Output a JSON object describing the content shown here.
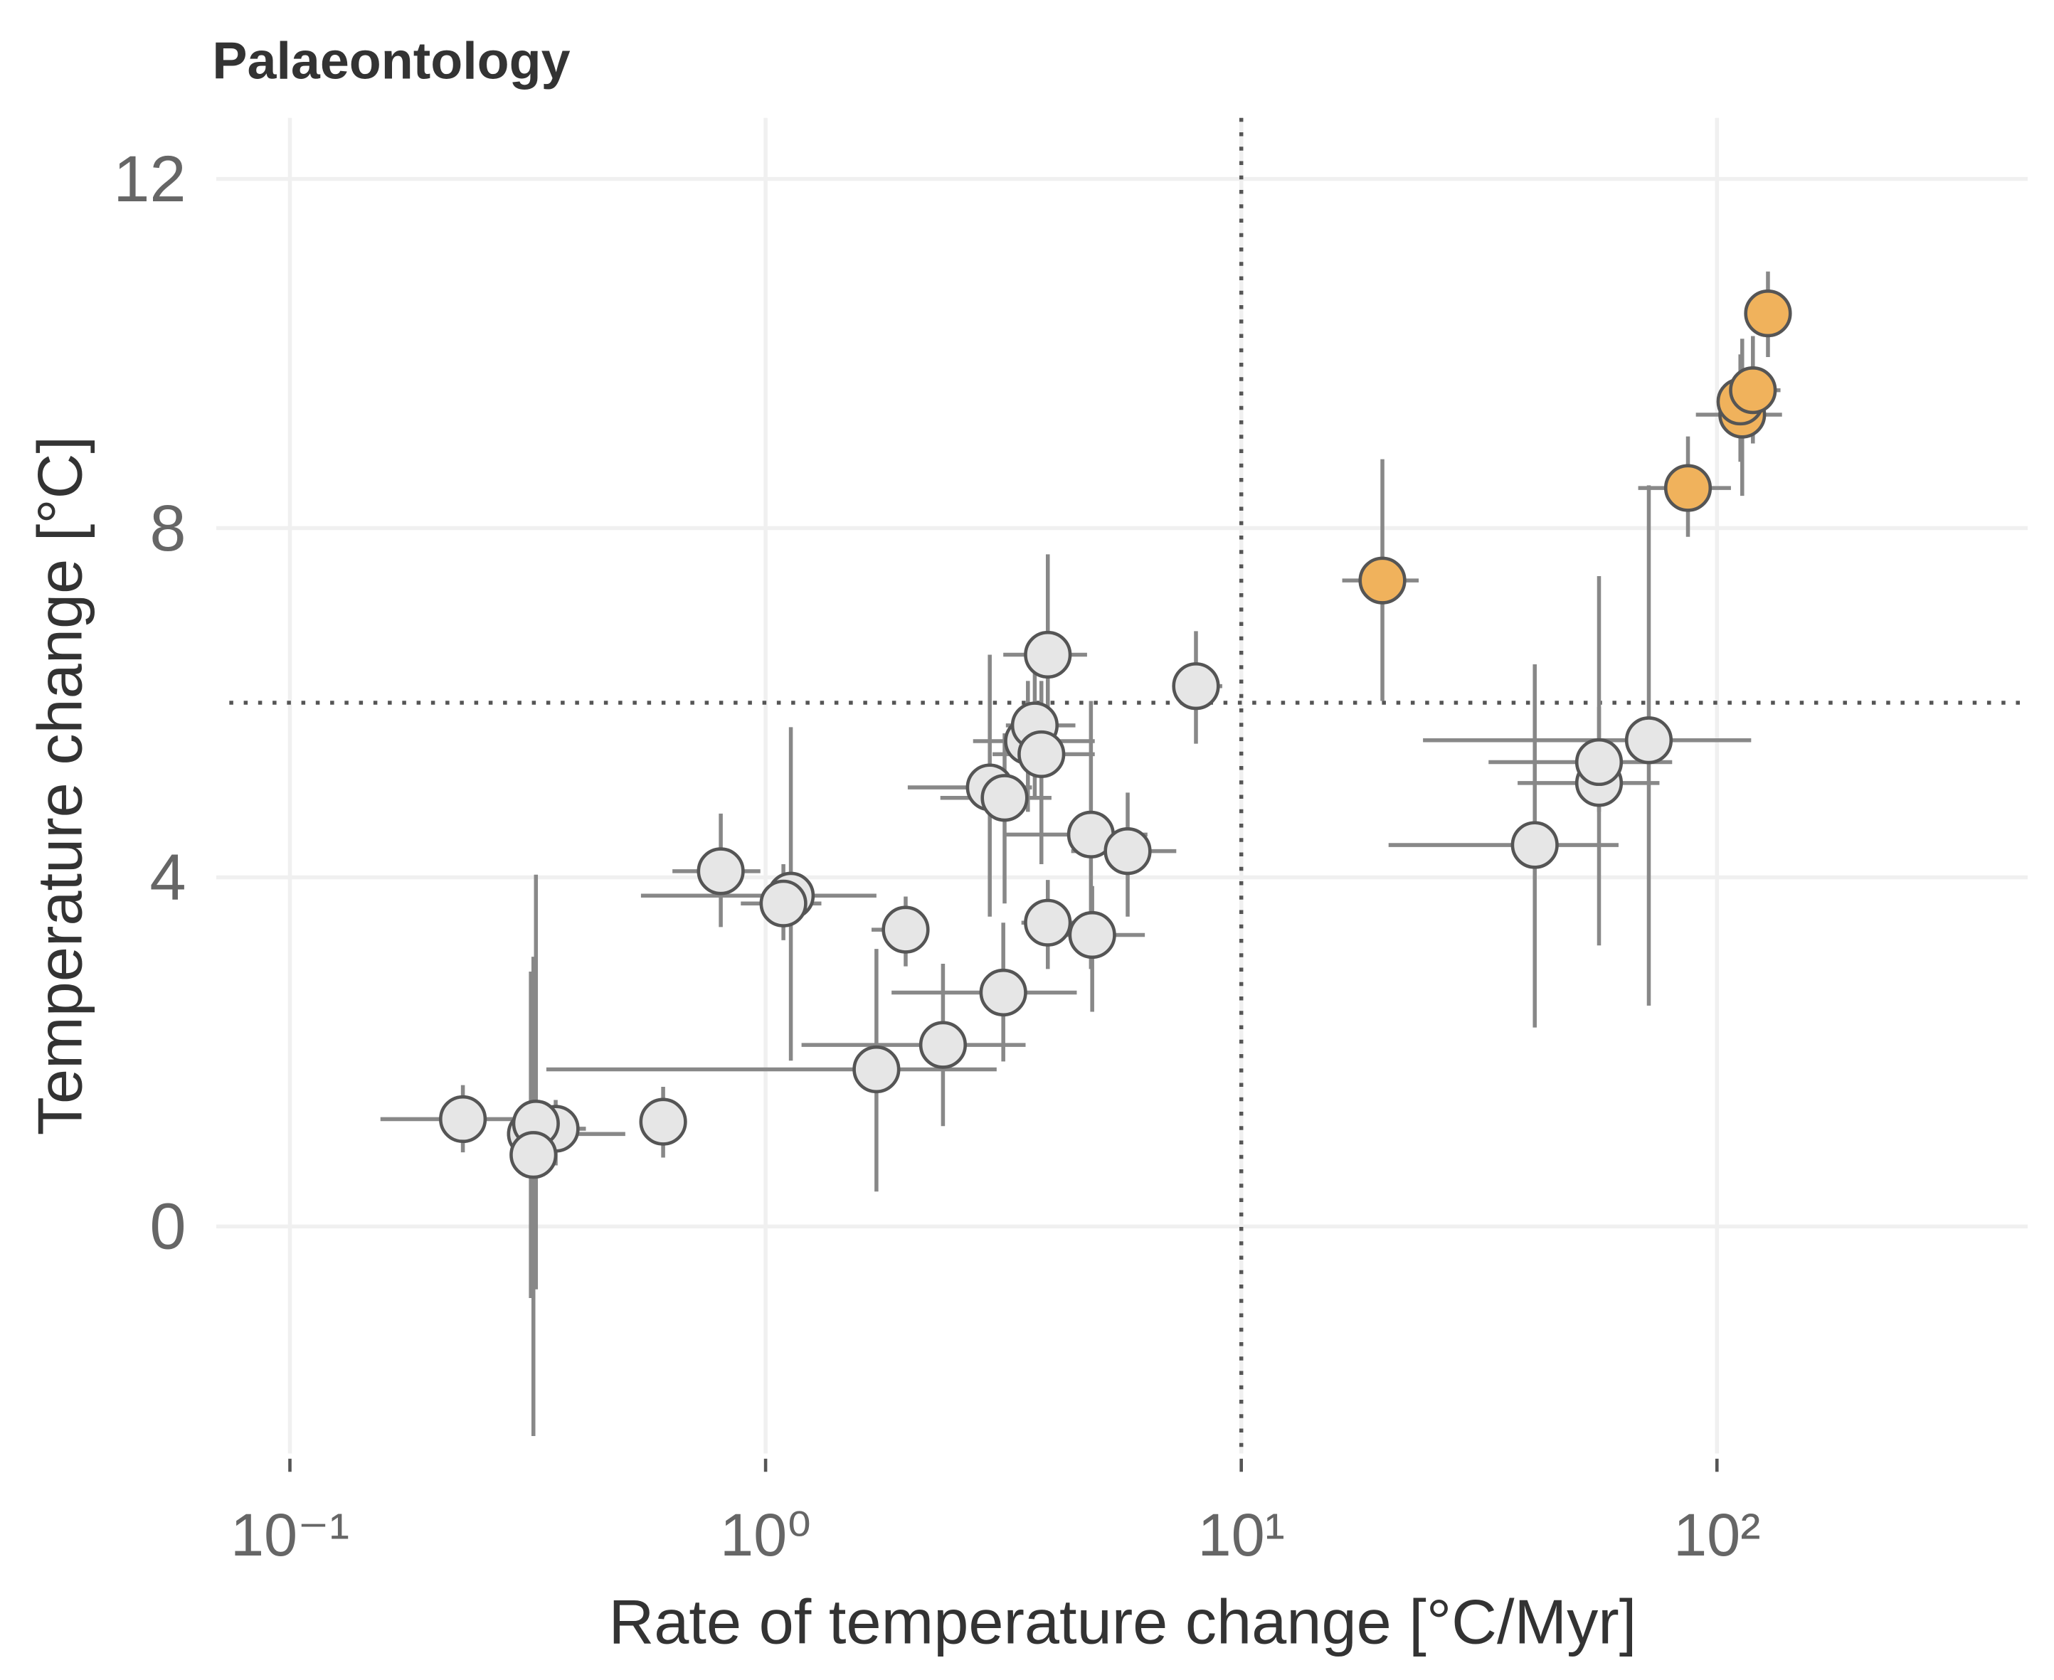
{
  "chart_data": {
    "type": "scatter",
    "title": "Palaeontology",
    "x_label": "Rate of temperature change [°C/Myr]",
    "y_label": "Temperature change [°C]",
    "xscale": "log",
    "xlim": [
      0.07,
      450
    ],
    "ylim": [
      -2.6,
      12.7
    ],
    "xticks": [
      {
        "value": 0.1,
        "label": "10⁻¹"
      },
      {
        "value": 1,
        "label": "10⁰"
      },
      {
        "value": 10,
        "label": "10¹"
      },
      {
        "value": 100,
        "label": "10²"
      }
    ],
    "yticks": [
      0,
      4,
      8,
      12
    ],
    "grid": true,
    "vline": 10,
    "hline": 6,
    "errorbar_color": "#888888",
    "series": [
      {
        "color": "#e6e6e6",
        "x": [
          0.231,
          0.321,
          0.362,
          0.329,
          0.325,
          0.609,
          0.805,
          1.13,
          1.09,
          1.97,
          1.71,
          2.36,
          3.16,
          2.96,
          3.18,
          3.92,
          3.56,
          3.68,
          3.8,
          3.92,
          4.83,
          4.86,
          5.77,
          8.03,
          41.4,
          56.5,
          56.5,
          71.9
        ],
        "xmin": [
          0.155,
          0.286,
          0.315,
          0.295,
          0.295,
          0.575,
          0.637,
          0.547,
          0.887,
          1.67,
          0.346,
          1.19,
          1.84,
          1.99,
          2.33,
          3.16,
          2.73,
          3.2,
          3.0,
          3.45,
          3.16,
          4.18,
          4.39,
          7.17,
          20.4,
          38.1,
          33.1,
          24.1
        ],
        "xmax": [
          0.342,
          0.507,
          0.419,
          0.369,
          0.357,
          0.645,
          0.975,
          1.71,
          1.31,
          2.21,
          3.06,
          3.52,
          4.51,
          3.63,
          3.99,
          4.74,
          4.92,
          4.48,
          4.92,
          4.92,
          6.35,
          6.27,
          7.3,
          9.12,
          62.1,
          75.7,
          80.5,
          118
        ],
        "values": [
          1.23,
          1.06,
          1.12,
          1.18,
          0.82,
          1.2,
          4.07,
          3.79,
          3.7,
          3.4,
          1.8,
          2.08,
          2.68,
          5.03,
          4.91,
          6.55,
          5.56,
          5.74,
          5.41,
          3.48,
          4.49,
          3.34,
          4.3,
          6.19,
          4.37,
          5.08,
          5.32,
          5.57
        ],
        "ymin": [
          0.85,
          -0.82,
          0.7,
          -0.72,
          -2.4,
          0.79,
          3.43,
          1.9,
          3.28,
          2.98,
          0.4,
          1.15,
          1.89,
          3.55,
          3.7,
          5.65,
          4.75,
          4.9,
          4.15,
          2.95,
          2.95,
          2.46,
          3.55,
          5.53,
          2.28,
          3.22,
          4.75,
          2.53
        ],
        "ymax": [
          1.62,
          2.92,
          1.45,
          4.03,
          3.09,
          1.6,
          4.73,
          5.72,
          4.15,
          3.78,
          3.18,
          3.01,
          3.48,
          6.55,
          5.65,
          7.7,
          6.25,
          6.55,
          6.25,
          3.97,
          6.02,
          3.9,
          4.97,
          6.82,
          6.44,
          7.45,
          5.95,
          8.49
        ]
      },
      {
        "color": "#f0b25c",
        "x": [
          19.8,
          86.9,
          113,
          112,
          119,
          128
        ],
        "xmin": [
          16.3,
          68.3,
          90.3,
          100,
          105,
          116
        ],
        "xmax": [
          23.6,
          107,
          137,
          129,
          136,
          143
        ],
        "values": [
          7.4,
          8.46,
          9.3,
          9.45,
          9.58,
          10.46
        ],
        "ymin": [
          6.02,
          7.9,
          8.37,
          8.76,
          8.97,
          9.96
        ],
        "ymax": [
          8.79,
          9.05,
          10.17,
          9.99,
          10.2,
          10.94
        ]
      }
    ]
  }
}
